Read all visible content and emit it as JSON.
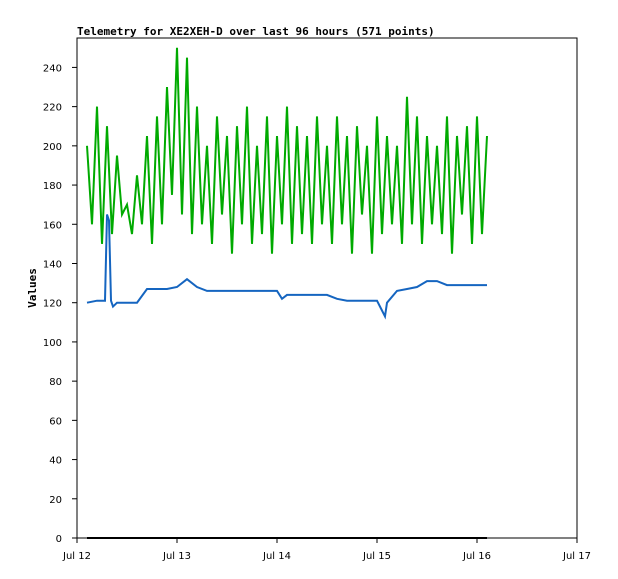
{
  "chart_data": {
    "type": "line",
    "title": "Telemetry for XE2XEH-D over last 96 hours (571 points)",
    "xlabel": "",
    "ylabel": "Values",
    "ylim": [
      0,
      255
    ],
    "xlim_days": [
      0,
      5
    ],
    "x_ticks": [
      {
        "day": 0,
        "label": "Jul 12"
      },
      {
        "day": 1,
        "label": "Jul 13"
      },
      {
        "day": 2,
        "label": "Jul 14"
      },
      {
        "day": 3,
        "label": "Jul 15"
      },
      {
        "day": 4,
        "label": "Jul 16"
      },
      {
        "day": 5,
        "label": "Jul 17"
      }
    ],
    "y_ticks": [
      0,
      20,
      40,
      60,
      80,
      100,
      120,
      140,
      160,
      180,
      200,
      220,
      240
    ],
    "grid": false,
    "series": [
      {
        "color": "#00aa00",
        "x": [
          0.1,
          0.15,
          0.2,
          0.25,
          0.3,
          0.35,
          0.4,
          0.45,
          0.5,
          0.55,
          0.6,
          0.65,
          0.7,
          0.75,
          0.8,
          0.85,
          0.9,
          0.95,
          1.0,
          1.05,
          1.1,
          1.15,
          1.2,
          1.25,
          1.3,
          1.35,
          1.4,
          1.45,
          1.5,
          1.55,
          1.6,
          1.65,
          1.7,
          1.75,
          1.8,
          1.85,
          1.9,
          1.95,
          2.0,
          2.05,
          2.1,
          2.15,
          2.2,
          2.25,
          2.3,
          2.35,
          2.4,
          2.45,
          2.5,
          2.55,
          2.6,
          2.65,
          2.7,
          2.75,
          2.8,
          2.85,
          2.9,
          2.95,
          3.0,
          3.05,
          3.1,
          3.15,
          3.2,
          3.25,
          3.3,
          3.35,
          3.4,
          3.45,
          3.5,
          3.55,
          3.6,
          3.65,
          3.7,
          3.75,
          3.8,
          3.85,
          3.9,
          3.95,
          4.0,
          4.05,
          4.1
        ],
        "y": [
          200,
          160,
          220,
          150,
          210,
          155,
          195,
          165,
          170,
          155,
          185,
          160,
          205,
          150,
          215,
          160,
          230,
          175,
          250,
          165,
          245,
          155,
          220,
          160,
          200,
          150,
          215,
          165,
          205,
          145,
          210,
          160,
          220,
          150,
          200,
          155,
          215,
          145,
          205,
          160,
          220,
          150,
          210,
          155,
          205,
          150,
          215,
          160,
          200,
          150,
          215,
          160,
          205,
          145,
          210,
          165,
          200,
          145,
          215,
          155,
          205,
          160,
          200,
          150,
          225,
          160,
          215,
          150,
          205,
          160,
          200,
          155,
          215,
          145,
          205,
          165,
          210,
          150,
          215,
          155,
          205
        ]
      },
      {
        "color": "#1565c0",
        "x": [
          0.1,
          0.2,
          0.28,
          0.3,
          0.32,
          0.34,
          0.36,
          0.4,
          0.5,
          0.6,
          0.7,
          0.8,
          0.9,
          1.0,
          1.1,
          1.2,
          1.3,
          1.4,
          1.5,
          1.6,
          1.7,
          1.8,
          1.9,
          2.0,
          2.05,
          2.1,
          2.2,
          2.3,
          2.4,
          2.5,
          2.6,
          2.7,
          2.8,
          2.9,
          3.0,
          3.05,
          3.08,
          3.1,
          3.2,
          3.3,
          3.4,
          3.5,
          3.6,
          3.7,
          3.8,
          3.9,
          4.0,
          4.1
        ],
        "y": [
          120,
          121,
          121,
          165,
          162,
          121,
          118,
          120,
          120,
          120,
          127,
          127,
          127,
          128,
          132,
          128,
          126,
          126,
          126,
          126,
          126,
          126,
          126,
          126,
          122,
          124,
          124,
          124,
          124,
          124,
          122,
          121,
          121,
          121,
          121,
          116,
          113,
          120,
          126,
          127,
          128,
          131,
          131,
          129,
          129,
          129,
          129,
          129
        ]
      },
      {
        "color": "#000000",
        "x": [
          0.1,
          4.1
        ],
        "y": [
          0,
          0
        ]
      }
    ]
  }
}
